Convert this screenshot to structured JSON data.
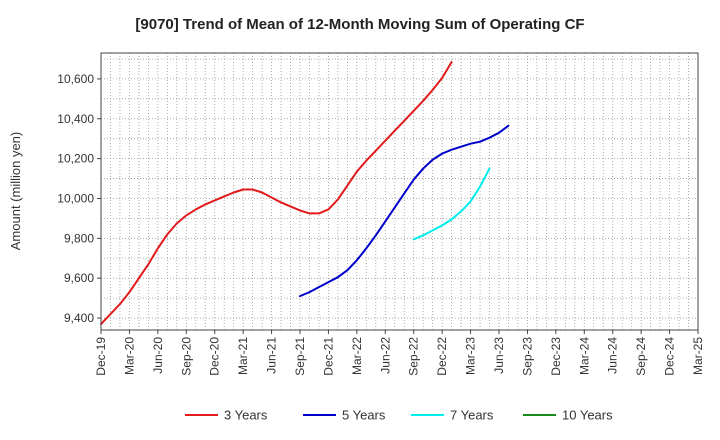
{
  "chart_data": {
    "type": "line",
    "title": "[9070]  Trend of Mean of 12-Month Moving Sum of Operating CF",
    "xlabel": "",
    "ylabel": "Amount (million yen)",
    "x_tick_labels": [
      "Dec-19",
      "Mar-20",
      "Jun-20",
      "Sep-20",
      "Dec-20",
      "Mar-21",
      "Jun-21",
      "Sep-21",
      "Dec-21",
      "Mar-22",
      "Jun-22",
      "Sep-22",
      "Dec-22",
      "Mar-23",
      "Jun-23",
      "Sep-23",
      "Dec-23",
      "Mar-24",
      "Jun-24",
      "Sep-24",
      "Dec-24",
      "Mar-25"
    ],
    "y_ticks": [
      9400,
      9600,
      9800,
      10000,
      10200,
      10400,
      10600
    ],
    "y_tick_labels": [
      "9,400",
      "9,600",
      "9,800",
      "10,000",
      "10,200",
      "10,400",
      "10,600"
    ],
    "ylim": [
      9340,
      10730
    ],
    "grid": true,
    "legend_position": "bottom",
    "series": [
      {
        "name": "3 Years",
        "color": "#e31a1c",
        "start_index": 0,
        "values": [
          9370,
          9420,
          9470,
          9530,
          9600,
          9670,
          9750,
          9820,
          9875,
          9915,
          9945,
          9970,
          9990,
          10010,
          10030,
          10045,
          10045,
          10030,
          10005,
          9980,
          9960,
          9940,
          9925,
          9925,
          9945,
          9995,
          10065,
          10135,
          10190,
          10240,
          10290,
          10340,
          10390,
          10440,
          10490,
          10545,
          10605,
          10685
        ]
      },
      {
        "name": "5 Years",
        "color": "#0000cc",
        "start_index": 21,
        "values": [
          9510,
          9530,
          9555,
          9580,
          9605,
          9640,
          9690,
          9750,
          9815,
          9885,
          9955,
          10025,
          10095,
          10150,
          10195,
          10225,
          10245,
          10260,
          10275,
          10285,
          10305,
          10330,
          10365
        ]
      },
      {
        "name": "7 Years",
        "color": "#00eeee",
        "start_index": 33,
        "values": [
          9795,
          9815,
          9840,
          9865,
          9895,
          9935,
          9985,
          10060,
          10150
        ]
      },
      {
        "name": "10 Years",
        "color": "#1a8a1a",
        "start_index": 0,
        "values": []
      }
    ]
  }
}
